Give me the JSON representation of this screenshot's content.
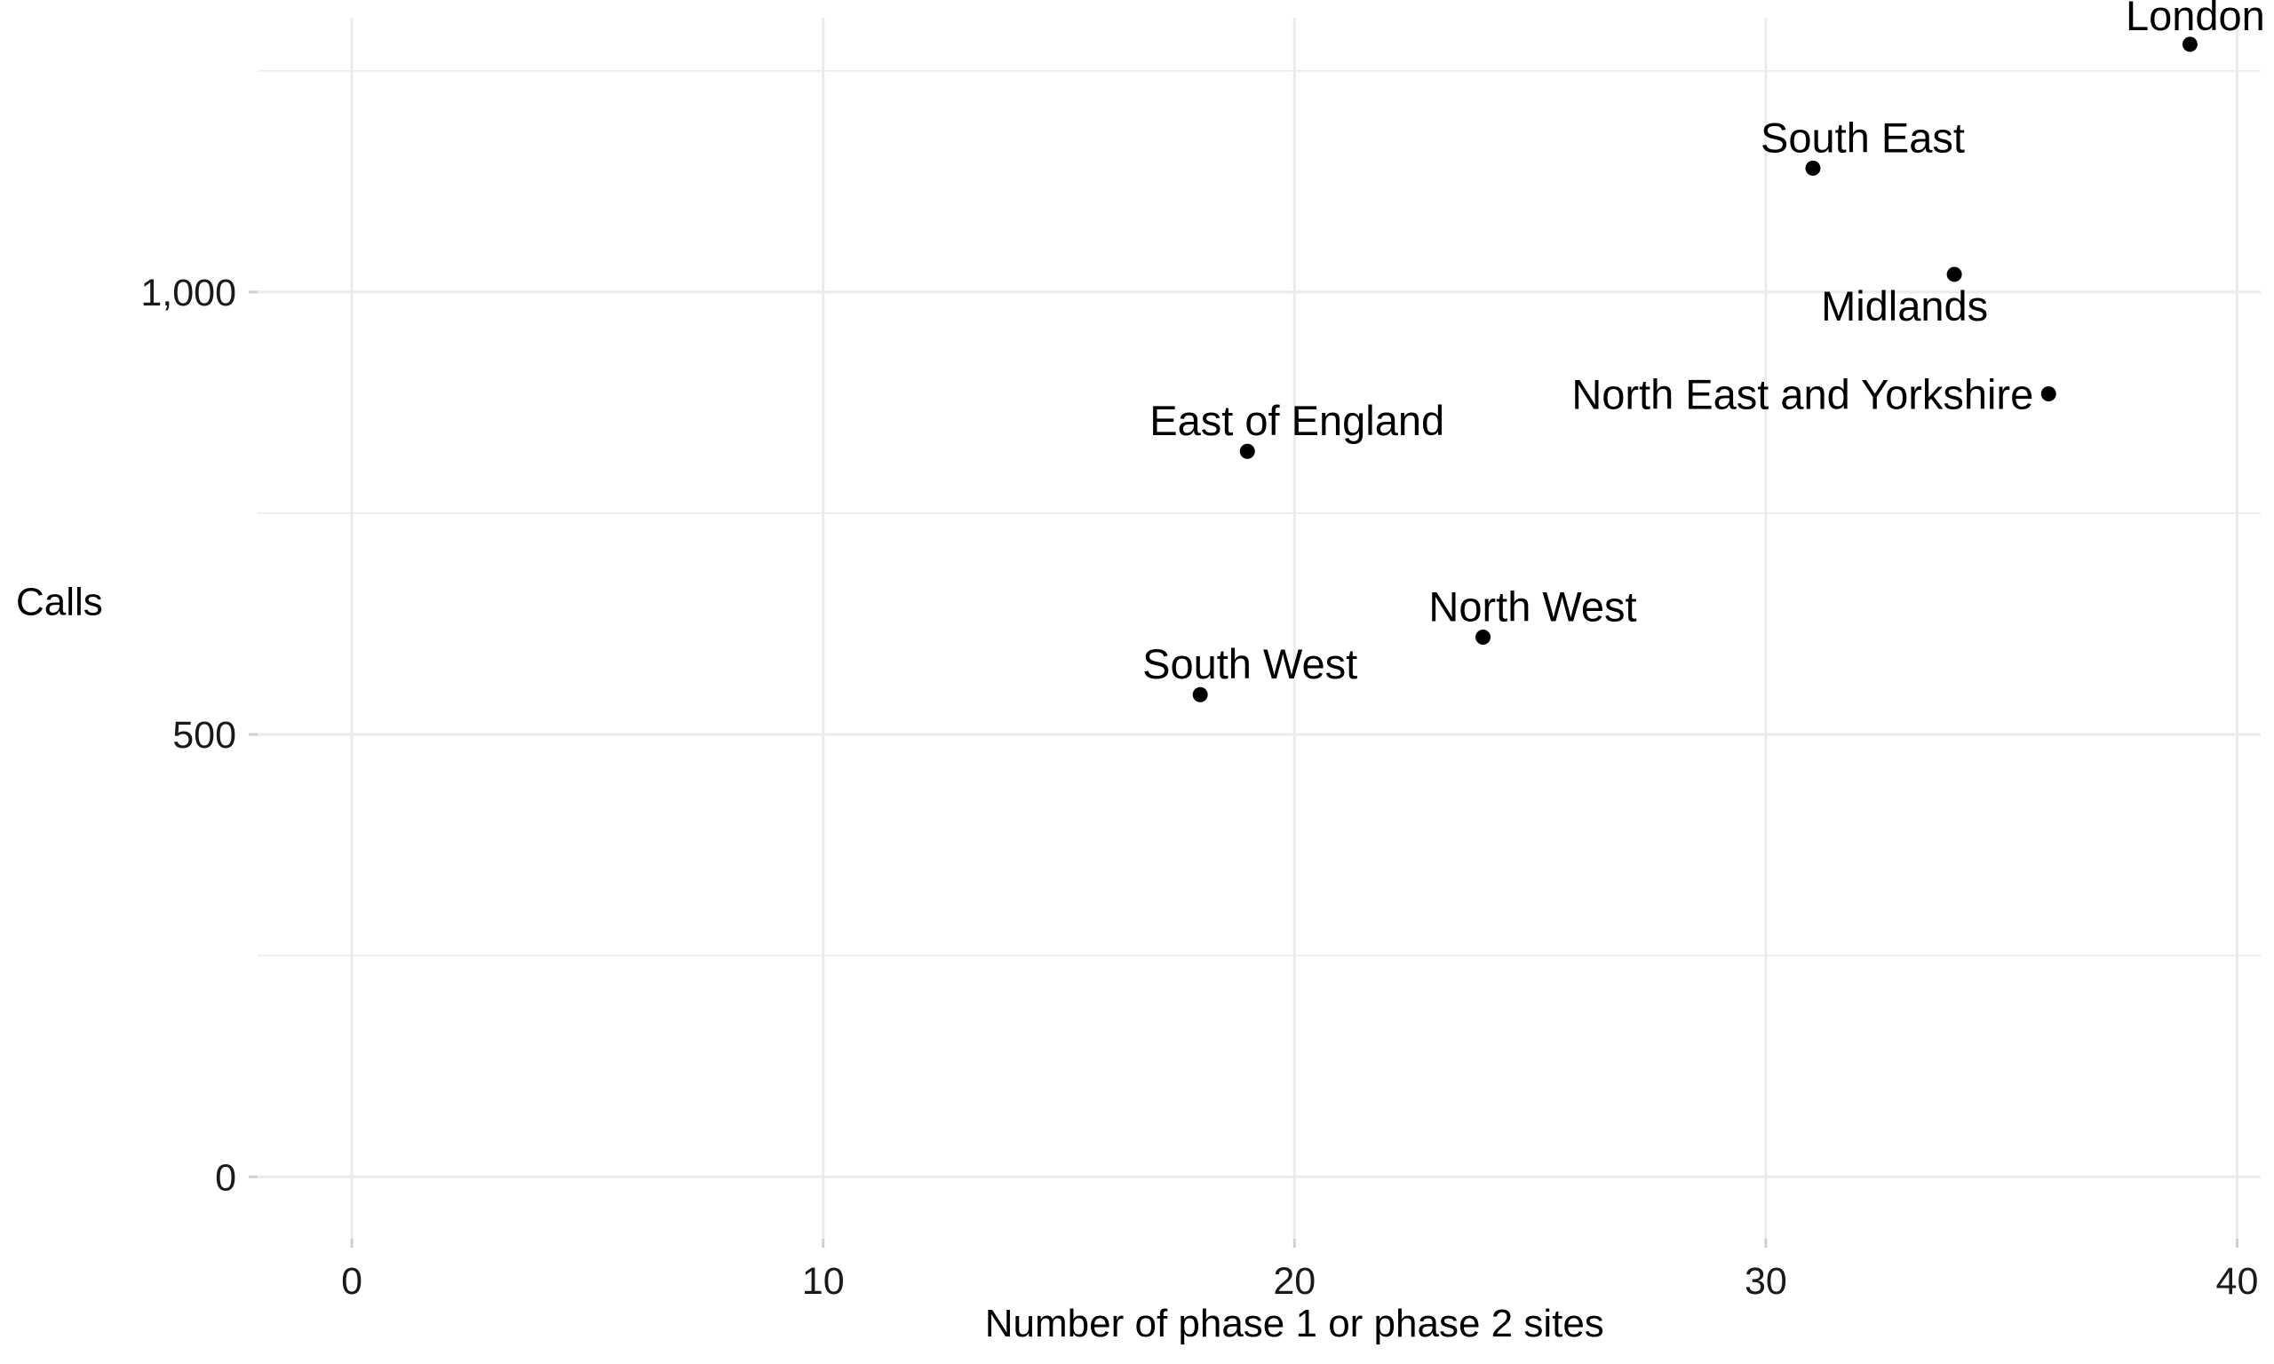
{
  "chart_data": {
    "type": "scatter",
    "title": "",
    "xlabel": "Number of phase 1 or phase 2 sites",
    "ylabel": "Calls",
    "xlim": [
      -2,
      40.5
    ],
    "ylim": [
      -70,
      1310
    ],
    "x_ticks": [
      0,
      10,
      20,
      30,
      40
    ],
    "x_tick_labels": [
      "0",
      "10",
      "20",
      "30",
      "40"
    ],
    "y_ticks": [
      0,
      500,
      1000
    ],
    "y_tick_labels": [
      "0",
      "500",
      "1,000"
    ],
    "y_minor_ticks": [
      250,
      750,
      1250
    ],
    "grid": true,
    "legend": "none",
    "point_color": "#000000",
    "grid_color": "#ebebeb",
    "points": [
      {
        "label": "London",
        "x": 39,
        "y": 1280
      },
      {
        "label": "South East",
        "x": 31,
        "y": 1140
      },
      {
        "label": "Midlands",
        "x": 34,
        "y": 1020
      },
      {
        "label": "North East and Yorkshire",
        "x": 36,
        "y": 885
      },
      {
        "label": "East of England",
        "x": 19,
        "y": 820
      },
      {
        "label": "North West",
        "x": 24,
        "y": 610
      },
      {
        "label": "South West",
        "x": 18,
        "y": 545
      }
    ]
  }
}
